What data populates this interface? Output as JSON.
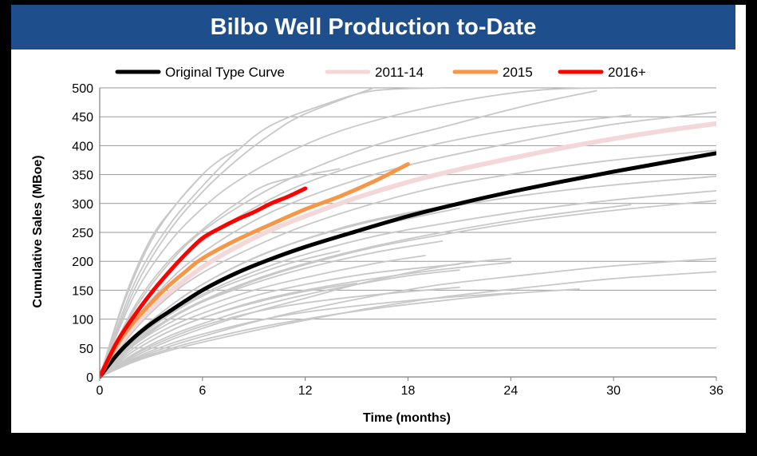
{
  "slide": {
    "title": "Bilbo Well Production to-Date"
  },
  "chart_data": {
    "type": "line",
    "title": "Bilbo Well Production to-Date",
    "xlabel": "Time (months)",
    "ylabel": "Cumulative Sales (MBoe)",
    "xlim": [
      0,
      36
    ],
    "ylim": [
      0,
      500
    ],
    "x_ticks": [
      0,
      6,
      12,
      18,
      24,
      30,
      36
    ],
    "y_ticks": [
      0,
      50,
      100,
      150,
      200,
      250,
      300,
      350,
      400,
      450,
      500
    ],
    "grid": "horizontal",
    "legend_position": "top",
    "series": [
      {
        "name": "Original Type Curve",
        "color": "#000000",
        "x": [
          0,
          1,
          2,
          3,
          4,
          6,
          8,
          10,
          12,
          15,
          18,
          21,
          24,
          27,
          30,
          33,
          36
        ],
        "y": [
          0,
          38,
          68,
          92,
          112,
          150,
          180,
          204,
          225,
          252,
          278,
          300,
          320,
          338,
          355,
          371,
          387
        ]
      },
      {
        "name": "2011-14",
        "color": "#f4d7d9",
        "x": [
          0,
          1,
          2,
          3,
          4,
          6,
          8,
          10,
          12,
          15,
          18,
          21,
          24,
          27,
          30,
          33,
          36
        ],
        "y": [
          0,
          50,
          88,
          118,
          145,
          190,
          225,
          254,
          278,
          310,
          337,
          359,
          378,
          396,
          412,
          426,
          438
        ]
      },
      {
        "name": "2015",
        "color": "#f79646",
        "x": [
          0,
          1,
          2,
          3,
          4,
          5,
          6,
          8,
          10,
          12,
          14,
          16,
          18
        ],
        "y": [
          0,
          55,
          95,
          128,
          157,
          182,
          205,
          237,
          264,
          290,
          312,
          338,
          368
        ]
      },
      {
        "name": "2016+",
        "color": "#ff0000",
        "x": [
          0,
          1,
          2,
          3,
          4,
          5,
          6,
          7,
          8,
          9,
          10,
          11,
          12
        ],
        "y": [
          0,
          60,
          105,
          145,
          180,
          212,
          240,
          257,
          272,
          285,
          300,
          312,
          326
        ]
      }
    ],
    "individual_wells": {
      "color": "#c8c8c8",
      "wells": [
        {
          "x": [
            0,
            2,
            4,
            6,
            8,
            10,
            13,
            16,
            20
          ],
          "y": [
            0,
            160,
            260,
            330,
            390,
            435,
            470,
            495,
            512
          ]
        },
        {
          "x": [
            0,
            2,
            4,
            6,
            8,
            10,
            12,
            16
          ],
          "y": [
            0,
            150,
            250,
            320,
            375,
            420,
            455,
            500
          ]
        },
        {
          "x": [
            0,
            1.5,
            3,
            4.5,
            6,
            7,
            8
          ],
          "y": [
            0,
            135,
            235,
            300,
            350,
            375,
            393
          ]
        },
        {
          "x": [
            0,
            1.5,
            3,
            4.5,
            6
          ],
          "y": [
            0,
            140,
            240,
            300,
            350
          ]
        },
        {
          "x": [
            0,
            2,
            4,
            6,
            8,
            11,
            14,
            18,
            22,
            26,
            30
          ],
          "y": [
            0,
            140,
            230,
            292,
            338,
            388,
            425,
            458,
            482,
            497,
            510
          ]
        },
        {
          "x": [
            0,
            2,
            4,
            6,
            8,
            10,
            14
          ],
          "y": [
            0,
            120,
            200,
            255,
            300,
            335,
            360
          ]
        },
        {
          "x": [
            0,
            2,
            4,
            6,
            9,
            12,
            16,
            20,
            25,
            29
          ],
          "y": [
            0,
            115,
            195,
            252,
            310,
            355,
            400,
            432,
            470,
            495
          ]
        },
        {
          "x": [
            0,
            2,
            4,
            6,
            9,
            12,
            16,
            20,
            25,
            31
          ],
          "y": [
            0,
            105,
            180,
            235,
            292,
            335,
            375,
            405,
            432,
            453
          ]
        },
        {
          "x": [
            0,
            2,
            4,
            6,
            9,
            12,
            16,
            20,
            25,
            30,
            36
          ],
          "y": [
            0,
            95,
            165,
            215,
            270,
            310,
            350,
            380,
            410,
            437,
            458
          ]
        },
        {
          "x": [
            0,
            2,
            4,
            6,
            9,
            12,
            16,
            20,
            25,
            30,
            36
          ],
          "y": [
            0,
            80,
            138,
            180,
            225,
            262,
            300,
            330,
            355,
            375,
            392
          ]
        },
        {
          "x": [
            0,
            2,
            4,
            6,
            9,
            12,
            16,
            20,
            25,
            30,
            36
          ],
          "y": [
            0,
            70,
            120,
            160,
            205,
            238,
            270,
            292,
            315,
            332,
            347
          ]
        },
        {
          "x": [
            0,
            2,
            4,
            6,
            9,
            12,
            16,
            20,
            25,
            30,
            36
          ],
          "y": [
            0,
            62,
            108,
            143,
            182,
            212,
            243,
            265,
            288,
            306,
            322
          ]
        },
        {
          "x": [
            0,
            2,
            4,
            6,
            9,
            12,
            16,
            20,
            25,
            30,
            36
          ],
          "y": [
            0,
            55,
            98,
            130,
            166,
            194,
            224,
            246,
            270,
            288,
            305
          ]
        },
        {
          "x": [
            0,
            2,
            4,
            6,
            9,
            12,
            16,
            20,
            25,
            31
          ],
          "y": [
            0,
            58,
            100,
            132,
            168,
            196,
            226,
            250,
            275,
            298
          ]
        },
        {
          "x": [
            0,
            2,
            4,
            6,
            9,
            12,
            16,
            21
          ],
          "y": [
            0,
            65,
            112,
            148,
            190,
            222,
            260,
            292
          ]
        },
        {
          "x": [
            0,
            2,
            4,
            6,
            9,
            12,
            16,
            20
          ],
          "y": [
            0,
            60,
            100,
            130,
            162,
            188,
            215,
            235
          ]
        },
        {
          "x": [
            0,
            2,
            4,
            6,
            9,
            12,
            16,
            19
          ],
          "y": [
            0,
            55,
            92,
            120,
            150,
            172,
            196,
            210
          ]
        },
        {
          "x": [
            0,
            2,
            4,
            6,
            9,
            12,
            16,
            21
          ],
          "y": [
            0,
            50,
            85,
            110,
            140,
            160,
            180,
            195
          ]
        },
        {
          "x": [
            0,
            2,
            4,
            6,
            9,
            12,
            16,
            20,
            24
          ],
          "y": [
            0,
            45,
            78,
            102,
            130,
            150,
            170,
            186,
            198
          ]
        },
        {
          "x": [
            0,
            2,
            4,
            6,
            9,
            12,
            16,
            21
          ],
          "y": [
            0,
            38,
            66,
            88,
            112,
            128,
            142,
            155
          ]
        },
        {
          "x": [
            0,
            2,
            4,
            6,
            9,
            12,
            16,
            20,
            24
          ],
          "y": [
            0,
            32,
            56,
            74,
            96,
            112,
            126,
            137,
            145
          ]
        },
        {
          "x": [
            0,
            2,
            4,
            6,
            9,
            12,
            15
          ],
          "y": [
            0,
            45,
            78,
            102,
            128,
            148,
            162
          ]
        },
        {
          "x": [
            0,
            2,
            4,
            6,
            9,
            12,
            15,
            18,
            21,
            24
          ],
          "y": [
            0,
            35,
            62,
            84,
            112,
            136,
            160,
            180,
            196,
            205
          ]
        },
        {
          "x": [
            0,
            2,
            4,
            6,
            9,
            12,
            16,
            20,
            26,
            30,
            36
          ],
          "y": [
            0,
            30,
            52,
            70,
            95,
            116,
            140,
            160,
            180,
            192,
            205
          ]
        },
        {
          "x": [
            0,
            2,
            4,
            6,
            9,
            12,
            16,
            20,
            24,
            28
          ],
          "y": [
            0,
            28,
            48,
            64,
            84,
            100,
            118,
            132,
            144,
            152
          ]
        },
        {
          "x": [
            0,
            2,
            4,
            6,
            9,
            12,
            16,
            20,
            26,
            30,
            36
          ],
          "y": [
            0,
            26,
            45,
            60,
            80,
            98,
            120,
            138,
            158,
            170,
            182
          ]
        },
        {
          "x": [
            0,
            2,
            4,
            6,
            9,
            12,
            15,
            18,
            21
          ],
          "y": [
            0,
            40,
            70,
            92,
            120,
            142,
            160,
            175,
            185
          ]
        },
        {
          "x": [
            0,
            2,
            4,
            6,
            8,
            11,
            14
          ],
          "y": [
            0,
            62,
            106,
            140,
            165,
            196,
            218
          ]
        },
        {
          "x": [
            0,
            2,
            4,
            6,
            8,
            10,
            13,
            16,
            21
          ],
          "y": [
            0,
            70,
            120,
            160,
            192,
            218,
            248,
            272,
            300
          ]
        }
      ]
    }
  }
}
